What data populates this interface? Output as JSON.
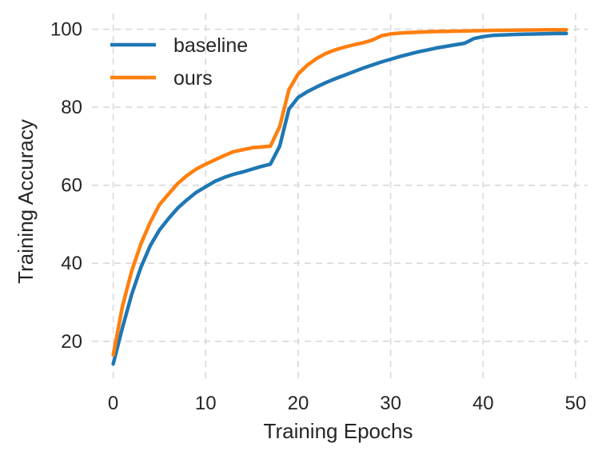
{
  "chart_data": {
    "type": "line",
    "xlabel": "Training Epochs",
    "ylabel": "Training Accuracy",
    "xlim": [
      -2.3,
      51.3
    ],
    "ylim": [
      9.5,
      104
    ],
    "xticks": [
      0,
      10,
      20,
      30,
      40,
      50
    ],
    "yticks": [
      20,
      40,
      60,
      80,
      100
    ],
    "grid": true,
    "legend_position": "top-left",
    "series": [
      {
        "name": "baseline",
        "color": "#1f77b4",
        "x": [
          0,
          1,
          2,
          3,
          4,
          5,
          6,
          7,
          8,
          9,
          10,
          11,
          12,
          13,
          14,
          15,
          16,
          17,
          18,
          19,
          20,
          21,
          22,
          23,
          24,
          25,
          26,
          27,
          28,
          29,
          30,
          31,
          32,
          33,
          34,
          35,
          36,
          37,
          38,
          39,
          40,
          41,
          42,
          43,
          44,
          45,
          46,
          47,
          48,
          49
        ],
        "y": [
          14.2,
          23.5,
          32.0,
          39.0,
          44.5,
          48.5,
          51.5,
          54.2,
          56.3,
          58.2,
          59.6,
          61.0,
          62.0,
          62.8,
          63.4,
          64.1,
          64.8,
          65.4,
          70.0,
          79.5,
          82.5,
          84.0,
          85.2,
          86.3,
          87.3,
          88.2,
          89.1,
          90.0,
          90.8,
          91.6,
          92.3,
          93.0,
          93.6,
          94.2,
          94.7,
          95.2,
          95.6,
          96.0,
          96.4,
          97.6,
          98.1,
          98.4,
          98.5,
          98.6,
          98.7,
          98.75,
          98.8,
          98.85,
          98.9,
          98.9
        ]
      },
      {
        "name": "ours",
        "color": "#ff7f0e",
        "x": [
          0,
          1,
          2,
          3,
          4,
          5,
          6,
          7,
          8,
          9,
          10,
          11,
          12,
          13,
          14,
          15,
          16,
          17,
          18,
          19,
          20,
          21,
          22,
          23,
          24,
          25,
          26,
          27,
          28,
          29,
          30,
          31,
          32,
          33,
          34,
          35,
          36,
          37,
          38,
          39,
          40,
          41,
          42,
          43,
          44,
          45,
          46,
          47,
          48,
          49
        ],
        "y": [
          16.5,
          29.0,
          38.0,
          45.0,
          50.5,
          55.0,
          57.8,
          60.5,
          62.5,
          64.2,
          65.4,
          66.5,
          67.6,
          68.6,
          69.1,
          69.6,
          69.8,
          70.0,
          75.0,
          84.5,
          88.5,
          90.8,
          92.5,
          93.8,
          94.7,
          95.4,
          96.0,
          96.5,
          97.2,
          98.3,
          98.8,
          99.0,
          99.15,
          99.25,
          99.35,
          99.4,
          99.45,
          99.5,
          99.55,
          99.6,
          99.65,
          99.7,
          99.72,
          99.75,
          99.78,
          99.8,
          99.82,
          99.84,
          99.85,
          99.86
        ]
      }
    ]
  }
}
